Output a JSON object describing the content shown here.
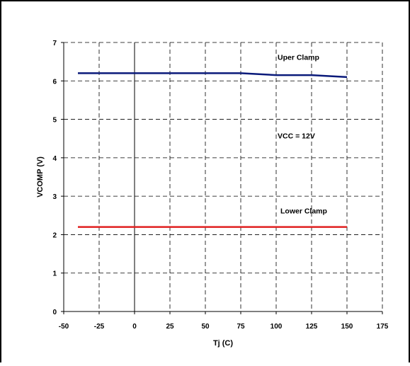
{
  "colors": {
    "upper_clamp": "#0a1a7a",
    "lower_clamp": "#e02020",
    "grid": "#000000",
    "frame": "#000000",
    "background": "#ffffff"
  },
  "chart_data": {
    "type": "line",
    "xlabel": "Tj (C)",
    "ylabel": "VCOMP (V)",
    "xlim": [
      -50,
      175
    ],
    "ylim": [
      0,
      7
    ],
    "xticks": [
      -50,
      -25,
      0,
      25,
      50,
      75,
      100,
      125,
      150,
      175
    ],
    "yticks": [
      0,
      1,
      2,
      3,
      4,
      5,
      6,
      7
    ],
    "xtick_labels": [
      "-50",
      "-25",
      "0",
      "25",
      "50",
      "75",
      "100",
      "125",
      "150",
      "175"
    ],
    "ytick_labels": [
      "0",
      "1",
      "2",
      "3",
      "4",
      "5",
      "6",
      "7"
    ],
    "grid": "dashed",
    "vertical_zero_line": true,
    "series": [
      {
        "name": "Uper Clamp",
        "color_key": "upper_clamp",
        "x": [
          -40,
          75,
          100,
          125,
          150
        ],
        "y": [
          6.2,
          6.2,
          6.15,
          6.15,
          6.1
        ]
      },
      {
        "name": "Lower Clamp",
        "color_key": "lower_clamp",
        "x": [
          -40,
          150
        ],
        "y": [
          2.2,
          2.2
        ]
      }
    ],
    "annotations": [
      {
        "text": "Uper Clamp",
        "x": 101,
        "y": 6.55
      },
      {
        "text": "VCC = 12V",
        "x": 101,
        "y": 4.5
      },
      {
        "text": "Lower Clamp",
        "x": 103,
        "y": 2.55
      }
    ]
  }
}
